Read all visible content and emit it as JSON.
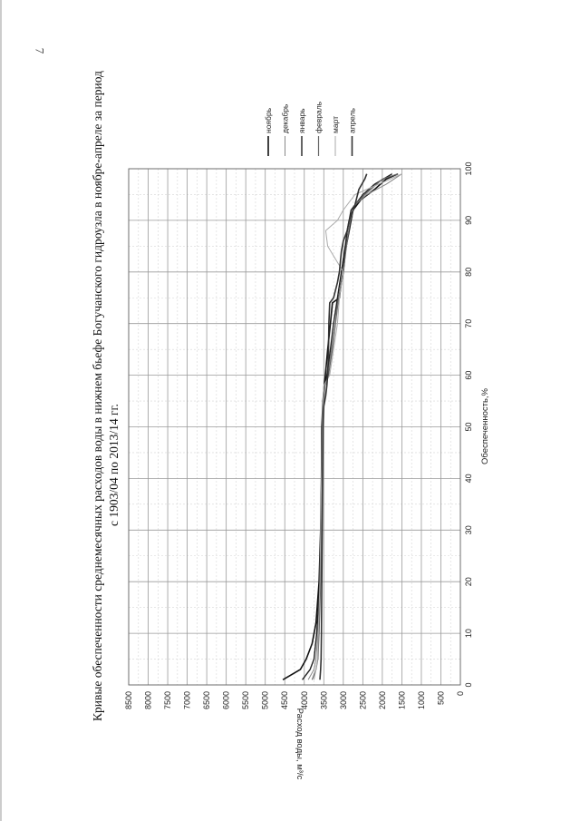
{
  "page": {
    "number": "7"
  },
  "chart_data": {
    "type": "line",
    "title_line1": "Кривые обеспеченности среднемесячных расходов воды в нижнем бьефе Богучанского гидроузла в ноябре-апреле за период",
    "title_line2": "с 1903/04 по 2013/14 гг.",
    "xlabel": "Обеспеченность,%",
    "ylabel": "Расход воды, м³/с",
    "xlim": [
      0,
      100
    ],
    "ylim": [
      0,
      8500
    ],
    "xticks": [
      "0",
      "10",
      "20",
      "30",
      "40",
      "50",
      "60",
      "70",
      "80",
      "90",
      "100"
    ],
    "yticks": [
      "0",
      "500",
      "1000",
      "1500",
      "2000",
      "2500",
      "3000",
      "3500",
      "4000",
      "4500",
      "5000",
      "5500",
      "6000",
      "6500",
      "7000",
      "7500",
      "8000",
      "8500"
    ],
    "grid": true,
    "legend_position": "top-right",
    "series": [
      {
        "name": "ноябрь",
        "color": "#111111",
        "width": 1.6,
        "x": [
          1,
          3,
          5,
          8,
          12,
          20,
          30,
          40,
          50,
          55,
          57,
          60,
          65,
          70,
          74,
          75,
          78,
          80,
          84,
          86,
          88,
          90,
          92,
          94,
          96,
          98,
          99
        ],
        "y": [
          4550,
          4100,
          3950,
          3800,
          3700,
          3620,
          3580,
          3560,
          3550,
          3520,
          3500,
          3460,
          3400,
          3330,
          3280,
          3100,
          3050,
          3000,
          2950,
          2900,
          2850,
          2800,
          2750,
          2550,
          2200,
          1900,
          1600
        ]
      },
      {
        "name": "декабрь",
        "color": "#888888",
        "width": 1.0,
        "x": [
          1,
          3,
          5,
          10,
          20,
          30,
          40,
          50,
          55,
          58,
          60,
          65,
          70,
          75,
          80,
          85,
          90,
          93,
          95,
          97,
          99
        ],
        "y": [
          3900,
          3750,
          3700,
          3650,
          3580,
          3560,
          3540,
          3520,
          3500,
          3480,
          3400,
          3300,
          3200,
          3150,
          3050,
          2950,
          2850,
          2700,
          2400,
          1900,
          1500
        ]
      },
      {
        "name": "январь",
        "color": "#222222",
        "width": 1.4,
        "x": [
          1,
          3,
          5,
          10,
          20,
          30,
          40,
          50,
          55,
          58,
          60,
          65,
          70,
          75,
          80,
          85,
          88,
          90,
          92,
          95,
          97,
          99
        ],
        "y": [
          4050,
          3850,
          3750,
          3680,
          3600,
          3570,
          3550,
          3530,
          3510,
          3490,
          3420,
          3330,
          3250,
          3150,
          3050,
          2950,
          2900,
          2850,
          2800,
          2500,
          2200,
          1750
        ]
      },
      {
        "name": "февраль",
        "color": "#666666",
        "width": 1.2,
        "x": [
          1,
          3,
          5,
          10,
          20,
          30,
          40,
          50,
          55,
          58,
          60,
          65,
          70,
          75,
          80,
          85,
          90,
          93,
          95,
          98,
          99
        ],
        "y": [
          3800,
          3700,
          3650,
          3620,
          3580,
          3560,
          3540,
          3520,
          3500,
          3470,
          3380,
          3280,
          3200,
          3120,
          3000,
          2920,
          2820,
          2700,
          2450,
          2000,
          1600
        ]
      },
      {
        "name": "март",
        "color": "#aaaaaa",
        "width": 1.0,
        "x": [
          1,
          3,
          5,
          10,
          20,
          30,
          40,
          50,
          55,
          58,
          60,
          65,
          70,
          75,
          80,
          85,
          88,
          90,
          92,
          95,
          98,
          99
        ],
        "y": [
          3750,
          3700,
          3660,
          3640,
          3600,
          3580,
          3560,
          3540,
          3520,
          3500,
          3350,
          3250,
          3150,
          3100,
          3000,
          3400,
          3450,
          3150,
          3000,
          2700,
          1800,
          1500
        ]
      },
      {
        "name": "апрель",
        "color": "#333333",
        "width": 1.6,
        "x": [
          1,
          3,
          5,
          10,
          20,
          30,
          40,
          50,
          54,
          56,
          58,
          60,
          65,
          70,
          74,
          75,
          78,
          80,
          84,
          86,
          88,
          90,
          93,
          96,
          98,
          99
        ],
        "y": [
          3600,
          3580,
          3570,
          3560,
          3550,
          3540,
          3530,
          3520,
          3500,
          3450,
          3420,
          3400,
          3380,
          3370,
          3350,
          3250,
          3150,
          3100,
          3050,
          3000,
          2900,
          2850,
          2700,
          2600,
          2450,
          2400
        ]
      }
    ]
  }
}
